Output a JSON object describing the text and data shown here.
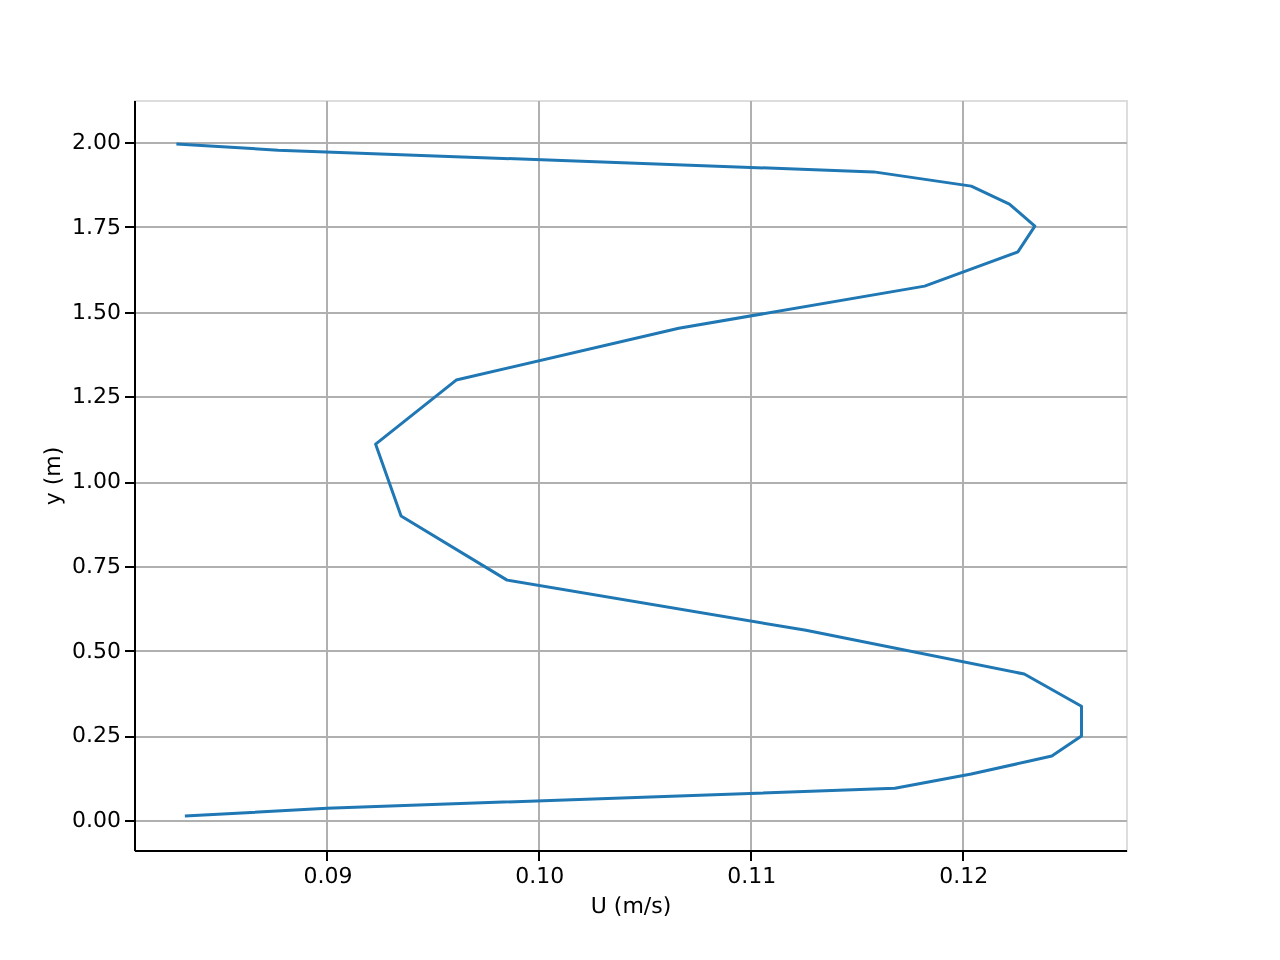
{
  "chart_data": {
    "type": "line",
    "xlabel": "U (m/s)",
    "ylabel": "y (m)",
    "xlim": [
      0.0809,
      0.1277
    ],
    "ylim": [
      -0.088,
      2.124
    ],
    "xticks": [
      {
        "value": 0.09,
        "label": "0.09"
      },
      {
        "value": 0.1,
        "label": "0.10"
      },
      {
        "value": 0.11,
        "label": "0.11"
      },
      {
        "value": 0.12,
        "label": "0.12"
      }
    ],
    "yticks": [
      {
        "value": 0,
        "label": "0.00"
      },
      {
        "value": 0.25,
        "label": "0.25"
      },
      {
        "value": 0.5,
        "label": "0.50"
      },
      {
        "value": 0.75,
        "label": "0.75"
      },
      {
        "value": 1.0,
        "label": "1.00"
      },
      {
        "value": 1.25,
        "label": "1.25"
      },
      {
        "value": 1.5,
        "label": "1.50"
      },
      {
        "value": 1.75,
        "label": "1.75"
      },
      {
        "value": 2.0,
        "label": "2.00"
      }
    ],
    "grid": true,
    "marker": "none",
    "line_style": "solid",
    "series": [
      {
        "color": "#1f77b4",
        "x": [
          0.0833,
          0.09,
          0.1168,
          0.1204,
          0.1242,
          0.1256,
          0.1256,
          0.1229,
          0.1126,
          0.0985,
          0.0935,
          0.0923,
          0.0961,
          0.1066,
          0.1182,
          0.1226,
          0.1234,
          0.1222,
          0.1204,
          0.1158,
          0.0877,
          0.0829
        ],
        "values": [
          0.012,
          0.035,
          0.094,
          0.136,
          0.189,
          0.248,
          0.336,
          0.431,
          0.56,
          0.708,
          0.897,
          1.109,
          1.298,
          1.451,
          1.575,
          1.676,
          1.752,
          1.817,
          1.87,
          1.912,
          1.976,
          1.994
        ]
      }
    ]
  }
}
